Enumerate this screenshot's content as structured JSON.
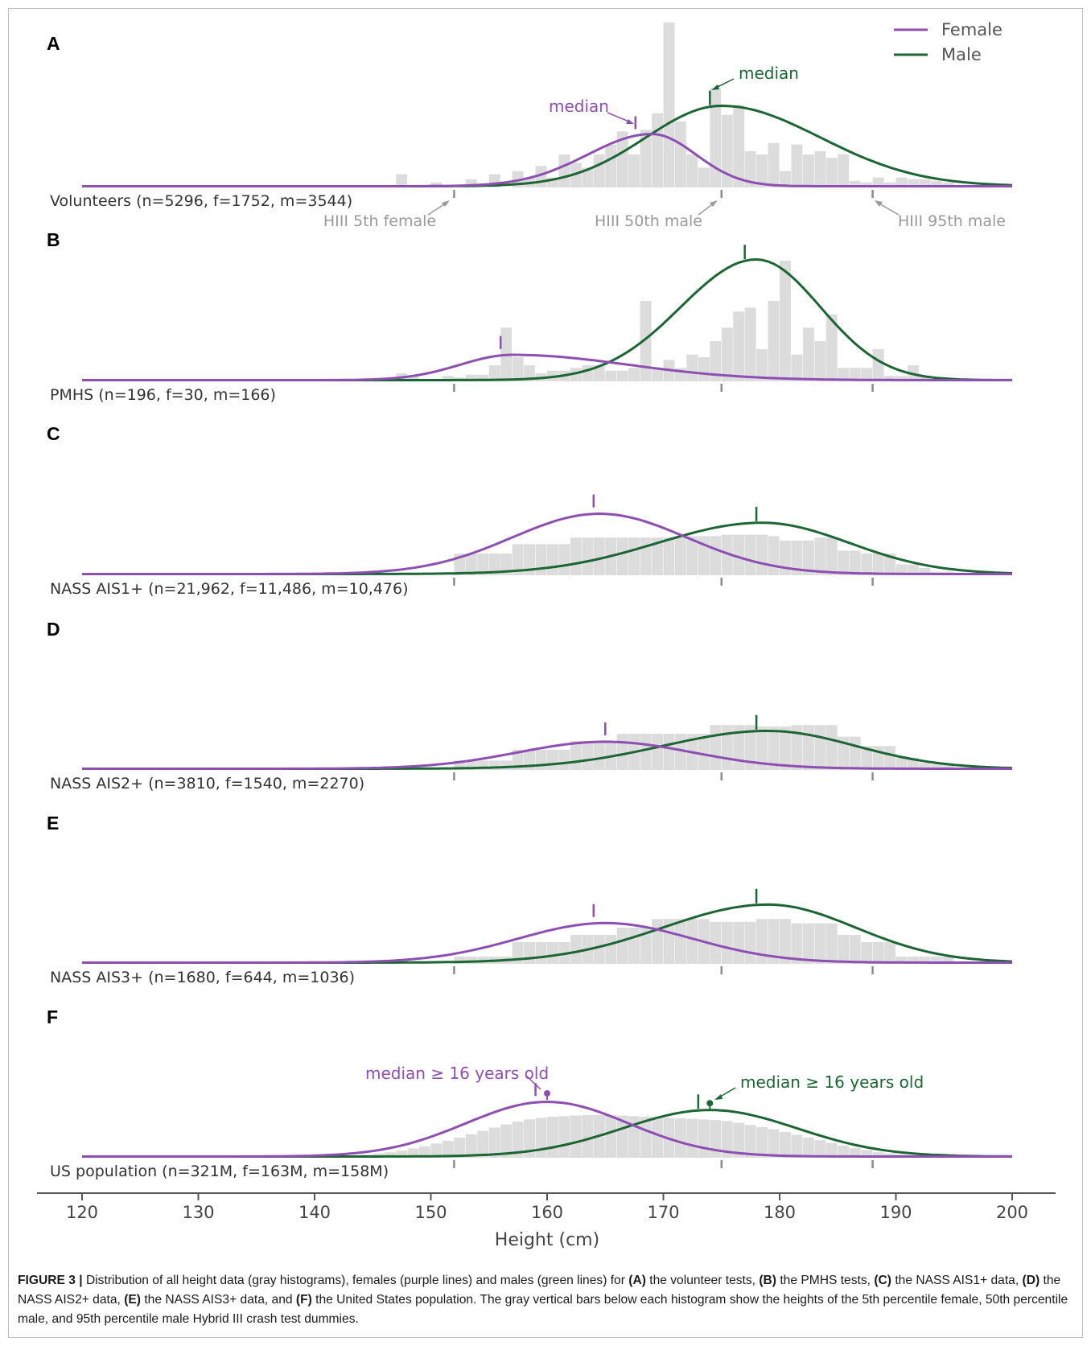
{
  "chart_data": {
    "type": "area",
    "xlabel": "Height (cm)",
    "xlim": [
      120,
      200
    ],
    "xticks": [
      120,
      130,
      140,
      150,
      160,
      170,
      180,
      190,
      200
    ],
    "legend": {
      "placement": "top-right",
      "entries": [
        {
          "name": "Female",
          "color": "#8e4fb2"
        },
        {
          "name": "Male",
          "color": "#1b6633"
        }
      ]
    },
    "colors": {
      "female": "#8e4fb2",
      "male": "#1b6633",
      "histogram": "#dcdcdc",
      "dummy_ticks": "#8c8c8c"
    },
    "dummy_heights": [
      152,
      175,
      188
    ],
    "dummy_labels": [
      "HIII 5th female",
      "HIII 50th male",
      "HIII 95th male"
    ],
    "panels": [
      {
        "letter": "A",
        "label": "Volunteers (n=5296, f=1752, m=3544)",
        "female_median": 167.6,
        "male_median": 174,
        "female_median_label": "median",
        "male_median_label": "median",
        "female": {
          "peak": 169,
          "sd_left": 5.5,
          "sd_right": 3.8,
          "amp": 0.65
        },
        "male": {
          "peak": 175,
          "sd_left": 6.5,
          "sd_right": 8.5,
          "amp": 1.0
        },
        "hist_x": [
          147,
          150,
          153,
          155,
          157,
          158,
          159,
          160,
          161,
          162,
          163,
          164,
          165,
          166,
          167,
          168,
          169,
          170,
          171,
          172,
          173,
          174,
          175,
          176,
          177,
          178,
          179,
          180,
          181,
          182,
          183,
          184,
          185,
          186,
          187,
          188,
          189,
          190,
          191,
          192,
          193,
          194
        ],
        "hist_y": [
          0.08,
          0.03,
          0.05,
          0.08,
          0.1,
          0.06,
          0.13,
          0.06,
          0.2,
          0.15,
          0.12,
          0.2,
          0.26,
          0.34,
          0.2,
          0.35,
          0.45,
          1.0,
          0.4,
          0.2,
          0.12,
          0.6,
          0.44,
          0.5,
          0.22,
          0.2,
          0.27,
          0.1,
          0.26,
          0.2,
          0.22,
          0.18,
          0.2,
          0.04,
          0.03,
          0.06,
          0.03,
          0.06,
          0.05,
          0.05,
          0.04,
          0.03
        ],
        "hist_max": 1.0
      },
      {
        "letter": "B",
        "label": "PMHS (n=196, f=30, m=166)",
        "female_median": 156,
        "female": {
          "peak": 157,
          "sd_left": 4.5,
          "sd_right": 10,
          "amp": 0.21
        },
        "male": {
          "peak": 178,
          "sd_left": 6.5,
          "sd_right": 5.5,
          "amp": 1.0
        },
        "male_median": 177,
        "hist_x": [
          147,
          148,
          151,
          152,
          153,
          154,
          155,
          156,
          157,
          158,
          159,
          160,
          161,
          162,
          163,
          164,
          165,
          166,
          167,
          168,
          169,
          170,
          171,
          172,
          173,
          174,
          175,
          176,
          177,
          178,
          179,
          180,
          181,
          182,
          183,
          184,
          185,
          186,
          187,
          188,
          189,
          190,
          191,
          192
        ],
        "hist_y": [
          0.06,
          0.04,
          0.04,
          0.03,
          0.05,
          0.05,
          0.12,
          0.4,
          0.18,
          0.12,
          0.06,
          0.08,
          0.08,
          0.1,
          0.12,
          0.12,
          0.08,
          0.08,
          0.1,
          0.6,
          0.1,
          0.16,
          0.1,
          0.2,
          0.18,
          0.3,
          0.4,
          0.52,
          0.55,
          0.24,
          0.6,
          0.9,
          0.2,
          0.4,
          0.3,
          0.5,
          0.1,
          0.1,
          0.1,
          0.24,
          0.04,
          0.04,
          0.12,
          0.04
        ],
        "hist_max": 0.9
      },
      {
        "letter": "C",
        "label": "NASS AIS1+ (n=21,962, f=11,486, m=10,476)",
        "female_median": 164,
        "male_median": 178,
        "female": {
          "peak": 164.5,
          "sd_left": 7.5,
          "sd_right": 7.5,
          "amp": 1.0
        },
        "male": {
          "peak": 178.5,
          "sd_left": 9,
          "sd_right": 7.5,
          "amp": 0.85
        },
        "hist_x": [
          152,
          153,
          154,
          155,
          156,
          157,
          158,
          159,
          160,
          161,
          162,
          163,
          164,
          165,
          166,
          167,
          168,
          169,
          170,
          171,
          172,
          173,
          174,
          175,
          176,
          177,
          178,
          179,
          180,
          181,
          182,
          183,
          184,
          185,
          186,
          187,
          188,
          189,
          190,
          191,
          192,
          193,
          194
        ],
        "hist_y": [
          0.3,
          0.3,
          0.3,
          0.3,
          0.3,
          0.43,
          0.43,
          0.43,
          0.43,
          0.43,
          0.52,
          0.52,
          0.52,
          0.52,
          0.52,
          0.52,
          0.52,
          0.52,
          0.52,
          0.52,
          0.54,
          0.54,
          0.54,
          0.56,
          0.56,
          0.56,
          0.56,
          0.54,
          0.48,
          0.48,
          0.48,
          0.52,
          0.52,
          0.34,
          0.34,
          0.3,
          0.3,
          0.3,
          0.15,
          0.15,
          0.1,
          0.05,
          0.05
        ],
        "hist_max": 1.0
      },
      {
        "letter": "D",
        "label": "NASS AIS2+ (n=3810, f=1540, m=2270)",
        "female_median": 165,
        "male_median": 178,
        "female": {
          "peak": 165,
          "sd_left": 7.5,
          "sd_right": 7.5,
          "amp": 0.6
        },
        "male": {
          "peak": 179,
          "sd_left": 9,
          "sd_right": 7.5,
          "amp": 0.84
        },
        "hist_x": [
          152,
          153,
          154,
          155,
          156,
          157,
          158,
          159,
          160,
          161,
          162,
          163,
          164,
          165,
          166,
          167,
          168,
          169,
          170,
          171,
          172,
          173,
          174,
          175,
          176,
          177,
          178,
          179,
          180,
          181,
          182,
          183,
          184,
          185,
          186,
          187,
          188,
          189,
          190,
          191,
          192,
          193,
          194
        ],
        "hist_y": [
          0.13,
          0.13,
          0.13,
          0.13,
          0.13,
          0.28,
          0.28,
          0.28,
          0.28,
          0.28,
          0.4,
          0.4,
          0.4,
          0.4,
          0.5,
          0.5,
          0.5,
          0.5,
          0.5,
          0.5,
          0.5,
          0.5,
          0.62,
          0.62,
          0.62,
          0.62,
          0.6,
          0.6,
          0.6,
          0.62,
          0.62,
          0.62,
          0.62,
          0.46,
          0.46,
          0.33,
          0.33,
          0.33,
          0.17,
          0.17,
          0.1,
          0.08,
          0.08
        ],
        "hist_max": 1.0
      },
      {
        "letter": "E",
        "label": "NASS AIS3+ (n=1680, f=644, m=1036)",
        "female_median": 164,
        "male_median": 178,
        "female": {
          "peak": 165,
          "sd_left": 7.5,
          "sd_right": 7.5,
          "amp": 0.6
        },
        "male": {
          "peak": 179,
          "sd_left": 9,
          "sd_right": 7.5,
          "amp": 0.88
        },
        "hist_x": [
          152,
          153,
          154,
          155,
          156,
          157,
          158,
          159,
          160,
          161,
          162,
          163,
          164,
          165,
          166,
          167,
          168,
          169,
          170,
          171,
          172,
          173,
          174,
          175,
          176,
          177,
          178,
          179,
          180,
          181,
          182,
          183,
          184,
          185,
          186,
          187,
          188,
          189,
          190,
          191,
          192,
          193,
          194
        ],
        "hist_y": [
          0.1,
          0.1,
          0.1,
          0.1,
          0.1,
          0.3,
          0.3,
          0.3,
          0.3,
          0.3,
          0.4,
          0.4,
          0.4,
          0.4,
          0.5,
          0.5,
          0.5,
          0.62,
          0.62,
          0.62,
          0.62,
          0.62,
          0.58,
          0.58,
          0.58,
          0.58,
          0.62,
          0.62,
          0.62,
          0.56,
          0.56,
          0.56,
          0.56,
          0.4,
          0.4,
          0.3,
          0.3,
          0.3,
          0.1,
          0.1,
          0.1,
          0.1,
          0.1
        ],
        "hist_max": 1.0
      },
      {
        "letter": "F",
        "label": "US population (n=321M, f=163M, m=158M)",
        "female_median": 159,
        "male_median": 173,
        "female_median_label": "median ≥ 16 years old",
        "male_median_label": "median ≥ 16 years old",
        "female_dot": 160,
        "male_dot": 174,
        "female": {
          "peak": 160,
          "sd_left": 7,
          "sd_right": 7,
          "amp": 1.0
        },
        "male": {
          "peak": 174,
          "sd_left": 7.5,
          "sd_right": 7.5,
          "amp": 0.85
        },
        "hist_x": [
          140,
          141,
          142,
          143,
          144,
          145,
          146,
          147,
          148,
          149,
          150,
          151,
          152,
          153,
          154,
          155,
          156,
          157,
          158,
          159,
          160,
          161,
          162,
          163,
          164,
          165,
          166,
          167,
          168,
          169,
          170,
          171,
          172,
          173,
          174,
          175,
          176,
          177,
          178,
          179,
          180,
          181,
          182,
          183,
          184,
          185,
          186,
          187,
          188,
          189,
          190,
          191,
          192,
          193,
          194,
          195,
          196,
          197
        ],
        "hist_y": [
          0.01,
          0.02,
          0.03,
          0.04,
          0.06,
          0.08,
          0.1,
          0.13,
          0.17,
          0.21,
          0.26,
          0.31,
          0.37,
          0.43,
          0.49,
          0.55,
          0.61,
          0.66,
          0.7,
          0.73,
          0.75,
          0.76,
          0.77,
          0.78,
          0.78,
          0.78,
          0.77,
          0.76,
          0.75,
          0.74,
          0.73,
          0.72,
          0.71,
          0.7,
          0.69,
          0.67,
          0.64,
          0.6,
          0.56,
          0.52,
          0.47,
          0.42,
          0.37,
          0.32,
          0.27,
          0.22,
          0.18,
          0.14,
          0.1,
          0.08,
          0.06,
          0.05,
          0.04,
          0.03,
          0.02,
          0.02,
          0.01,
          0.01
        ],
        "hist_max": 1.0
      }
    ]
  },
  "caption": {
    "lead": "FIGURE 3 |",
    "parts": [
      {
        "t": " Distribution of all height data (gray histograms), females (purple lines) and males (green lines) for ",
        "b": false
      },
      {
        "t": "(A)",
        "b": true
      },
      {
        "t": " the volunteer tests, ",
        "b": false
      },
      {
        "t": "(B)",
        "b": true
      },
      {
        "t": " the PMHS tests, ",
        "b": false
      },
      {
        "t": "(C)",
        "b": true
      },
      {
        "t": " the NASS AIS1+ data, ",
        "b": false
      },
      {
        "t": "(D)",
        "b": true
      },
      {
        "t": " the NASS AIS2+ data, ",
        "b": false
      },
      {
        "t": "(E)",
        "b": true
      },
      {
        "t": " the NASS AIS3+ data, and ",
        "b": false
      },
      {
        "t": "(F)",
        "b": true
      },
      {
        "t": " the United States population. The gray vertical bars below each histogram show the heights of the 5th percentile female, 50th percentile male, and 95th percentile male Hybrid III crash test dummies.",
        "b": false
      }
    ]
  }
}
